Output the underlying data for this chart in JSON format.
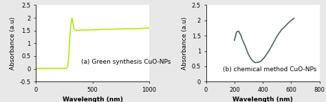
{
  "chart_a": {
    "title": "(a) Green synthesis CuO-NPs",
    "xlabel": "Wavelength (nm)",
    "ylabel": "Absorbance (a.u)",
    "xlim": [
      0,
      1000
    ],
    "ylim": [
      -0.5,
      2.5
    ],
    "xticks": [
      0,
      500,
      1000
    ],
    "yticks": [
      -0.5,
      0,
      0.5,
      1,
      1.5,
      2,
      2.5
    ],
    "color": "#aaee00",
    "linewidth": 1.2,
    "curve": {
      "x": [
        0,
        200,
        265,
        275,
        280,
        290,
        305,
        318,
        325,
        335,
        345,
        360,
        400,
        500,
        600,
        700,
        800,
        900,
        1000
      ],
      "y": [
        0.02,
        0.02,
        0.02,
        0.04,
        0.08,
        0.5,
        1.6,
        2.0,
        1.85,
        1.6,
        1.52,
        1.5,
        1.52,
        1.53,
        1.55,
        1.56,
        1.57,
        1.58,
        1.6
      ]
    }
  },
  "chart_b": {
    "title": "(b) chemical method CuO-NPs",
    "xlabel": "Wavelength (nm)",
    "ylabel": "Absorbance (a.u)",
    "xlim": [
      0,
      800
    ],
    "ylim": [
      0,
      2.5
    ],
    "xticks": [
      0,
      200,
      400,
      600,
      800
    ],
    "yticks": [
      0,
      0.5,
      1,
      1.5,
      2,
      2.5
    ],
    "color": "#4a6060",
    "linewidth": 1.2,
    "curve": {
      "x": [
        200,
        215,
        230,
        245,
        255,
        265,
        275,
        285,
        300,
        320,
        345,
        370,
        390,
        410,
        440,
        470,
        500,
        530,
        560,
        590,
        620
      ],
      "y": [
        1.35,
        1.62,
        1.65,
        1.52,
        1.38,
        1.28,
        1.18,
        1.05,
        0.88,
        0.72,
        0.62,
        0.63,
        0.68,
        0.78,
        0.98,
        1.22,
        1.48,
        1.68,
        1.82,
        1.96,
        2.07
      ]
    }
  },
  "outer_bg_color": "#e8e8e8",
  "panel_bg_color": "#ffffff",
  "text_fontsize": 6.5,
  "label_fontsize": 6.5,
  "tick_fontsize": 6,
  "title_fontsize": 6.5
}
